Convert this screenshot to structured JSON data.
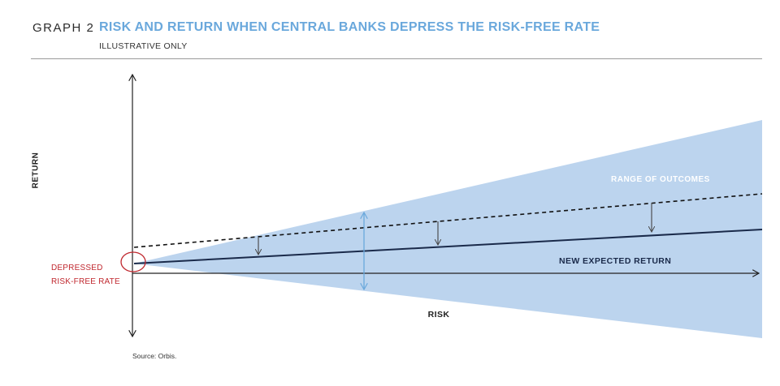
{
  "header": {
    "graph_number": "GRAPH 2",
    "title": "RISK AND RETURN WHEN CENTRAL BANKS DEPRESS THE RISK-FREE RATE",
    "subtitle": "ILLUSTRATIVE ONLY"
  },
  "axes": {
    "y_label": "RETURN",
    "x_label": "RISK"
  },
  "annotations": {
    "risk_free_line1": "DEPRESSED",
    "risk_free_line2": "RISK-FREE RATE",
    "range_of_outcomes": "RANGE OF OUTCOMES",
    "new_expected_return": "NEW EXPECTED RETURN"
  },
  "source": "Source: Orbis.",
  "colors": {
    "range_fill": "#bcd4ee",
    "range_arrow": "#6aa8dc",
    "expected_line": "#1a2a4a",
    "risk_free_circle": "#c0282f",
    "title": "#6aa8dc"
  }
}
